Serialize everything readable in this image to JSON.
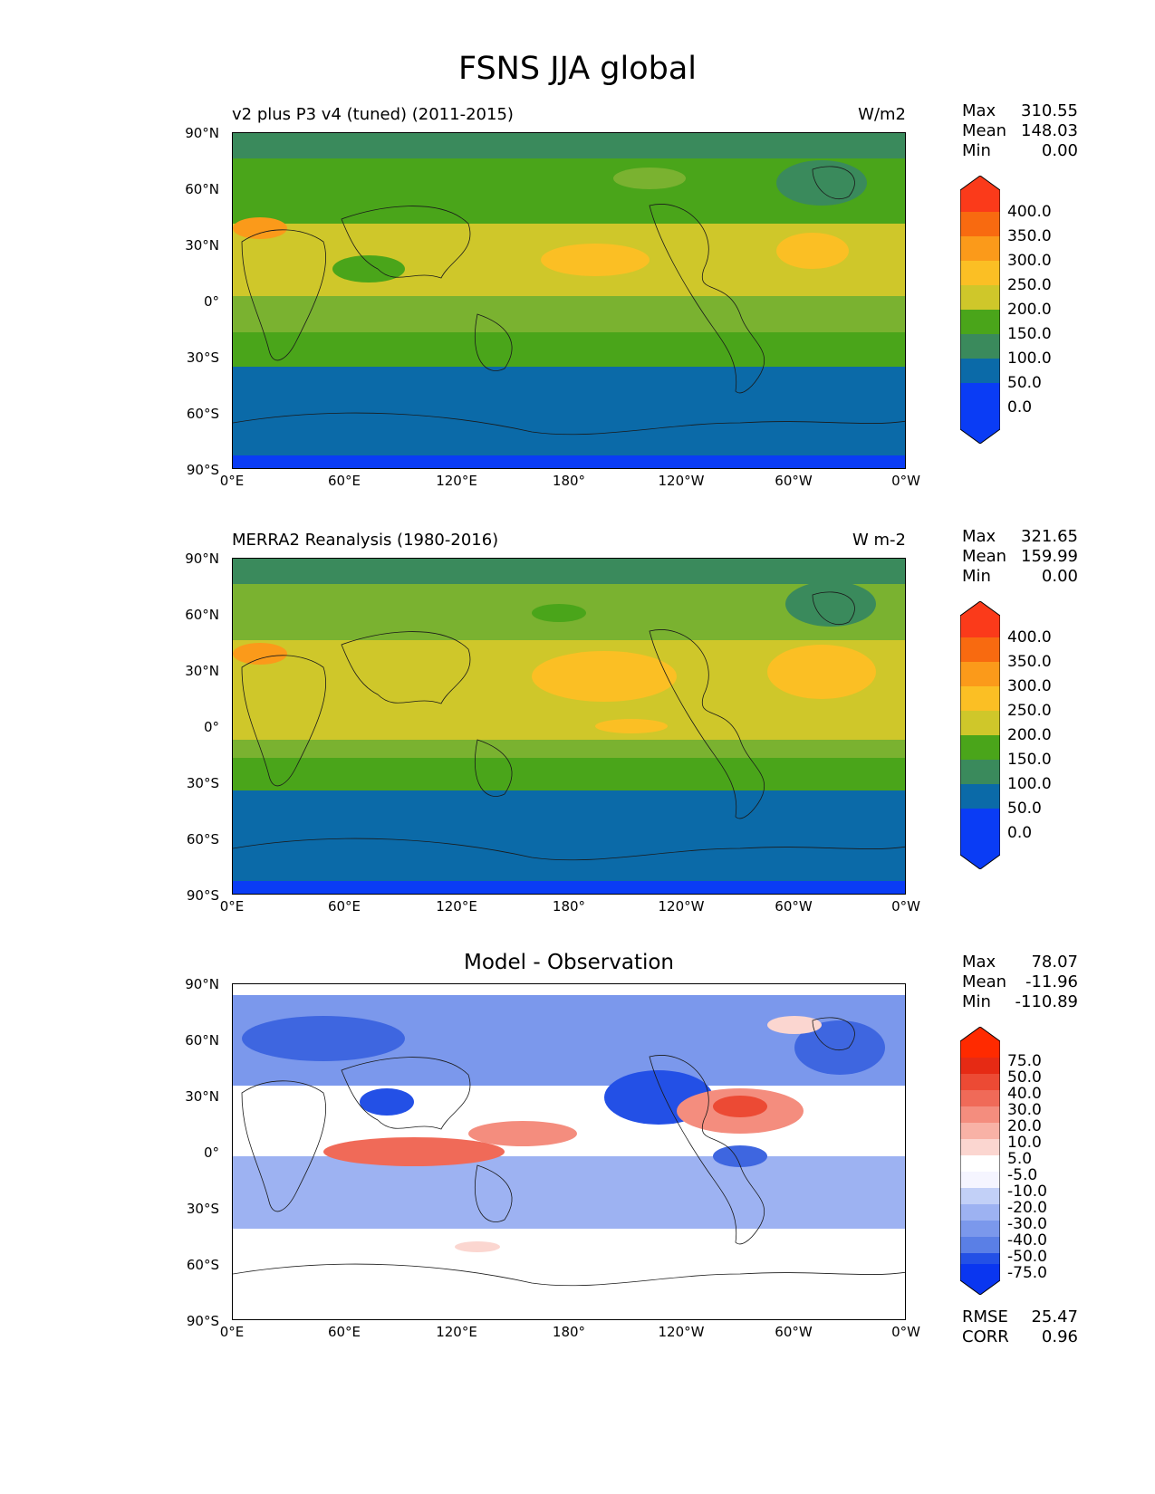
{
  "figure_title": "FSNS JJA global",
  "x_tick_labels": [
    "0°E",
    "60°E",
    "120°E",
    "180°",
    "120°W",
    "60°W",
    "0°W"
  ],
  "y_tick_labels": [
    "90°N",
    "60°N",
    "30°N",
    "0°",
    "30°S",
    "60°S",
    "90°S"
  ],
  "panels": [
    {
      "title": "v2 plus P3 v4 (tuned) (2011-2015)",
      "units": "W/m2",
      "stats": [
        {
          "label": "Max",
          "value": "310.55"
        },
        {
          "label": "Mean",
          "value": "148.03"
        },
        {
          "label": "Min",
          "value": "0.00"
        }
      ],
      "colorbar_labels": [
        "400.0",
        "350.0",
        "300.0",
        "250.0",
        "200.0",
        "150.0",
        "100.0",
        "50.0",
        "0.0"
      ]
    },
    {
      "title": "MERRA2 Reanalysis (1980-2016)",
      "units": "W m-2",
      "stats": [
        {
          "label": "Max",
          "value": "321.65"
        },
        {
          "label": "Mean",
          "value": "159.99"
        },
        {
          "label": "Min",
          "value": "0.00"
        }
      ],
      "colorbar_labels": [
        "400.0",
        "350.0",
        "300.0",
        "250.0",
        "200.0",
        "150.0",
        "100.0",
        "50.0",
        "0.0"
      ]
    },
    {
      "title": "Model - Observation",
      "stats": [
        {
          "label": "Max",
          "value": "78.07"
        },
        {
          "label": "Mean",
          "value": "-11.96"
        },
        {
          "label": "Min",
          "value": "-110.89"
        }
      ],
      "colorbar_labels": [
        "75.0",
        "50.0",
        "40.0",
        "30.0",
        "20.0",
        "10.0",
        "5.0",
        "-5.0",
        "-10.0",
        "-20.0",
        "-30.0",
        "-40.0",
        "-50.0",
        "-75.0"
      ],
      "error_stats": [
        {
          "label": "RMSE",
          "value": "25.47"
        },
        {
          "label": "CORR",
          "value": "0.96"
        }
      ]
    }
  ],
  "colors": {
    "abs_scale": [
      "#0a3cf5",
      "#0b6aa8",
      "#3a8a5c",
      "#4aa51a",
      "#7ab230",
      "#cfc72a",
      "#fbbf24",
      "#fb9a1a",
      "#f86a10",
      "#fb3a1a"
    ],
    "diff_scale": [
      "#0a36f0",
      "#2350e6",
      "#3e66e0",
      "#5a7fe6",
      "#7b98ec",
      "#9db2f2",
      "#c2d0f7",
      "#f5f5ff",
      "#ffffff",
      "#fbd6d0",
      "#f8b2a6",
      "#f48d7e",
      "#f06a58",
      "#ec4a34",
      "#e62a14",
      "#ff2a00"
    ]
  },
  "chart_data": [
    {
      "type": "heatmap",
      "title": "v2 plus P3 v4 (tuned) (2011-2015)",
      "variable": "FSNS",
      "season": "JJA",
      "units": "W/m2",
      "x_range": [
        0,
        360
      ],
      "y_range": [
        -90,
        90
      ],
      "levels": [
        0,
        50,
        100,
        150,
        200,
        250,
        300,
        350,
        400
      ],
      "max": 310.55,
      "mean": 148.03,
      "min": 0.0
    },
    {
      "type": "heatmap",
      "title": "MERRA2 Reanalysis (1980-2016)",
      "variable": "FSNS",
      "season": "JJA",
      "units": "W m-2",
      "x_range": [
        0,
        360
      ],
      "y_range": [
        -90,
        90
      ],
      "levels": [
        0,
        50,
        100,
        150,
        200,
        250,
        300,
        350,
        400
      ],
      "max": 321.65,
      "mean": 159.99,
      "min": 0.0
    },
    {
      "type": "heatmap",
      "title": "Model - Observation",
      "variable": "FSNS",
      "x_range": [
        0,
        360
      ],
      "y_range": [
        -90,
        90
      ],
      "levels": [
        -75,
        -50,
        -40,
        -30,
        -20,
        -10,
        -5,
        5,
        10,
        20,
        30,
        40,
        50,
        75
      ],
      "max": 78.07,
      "mean": -11.96,
      "min": -110.89,
      "rmse": 25.47,
      "corr": 0.96
    }
  ]
}
